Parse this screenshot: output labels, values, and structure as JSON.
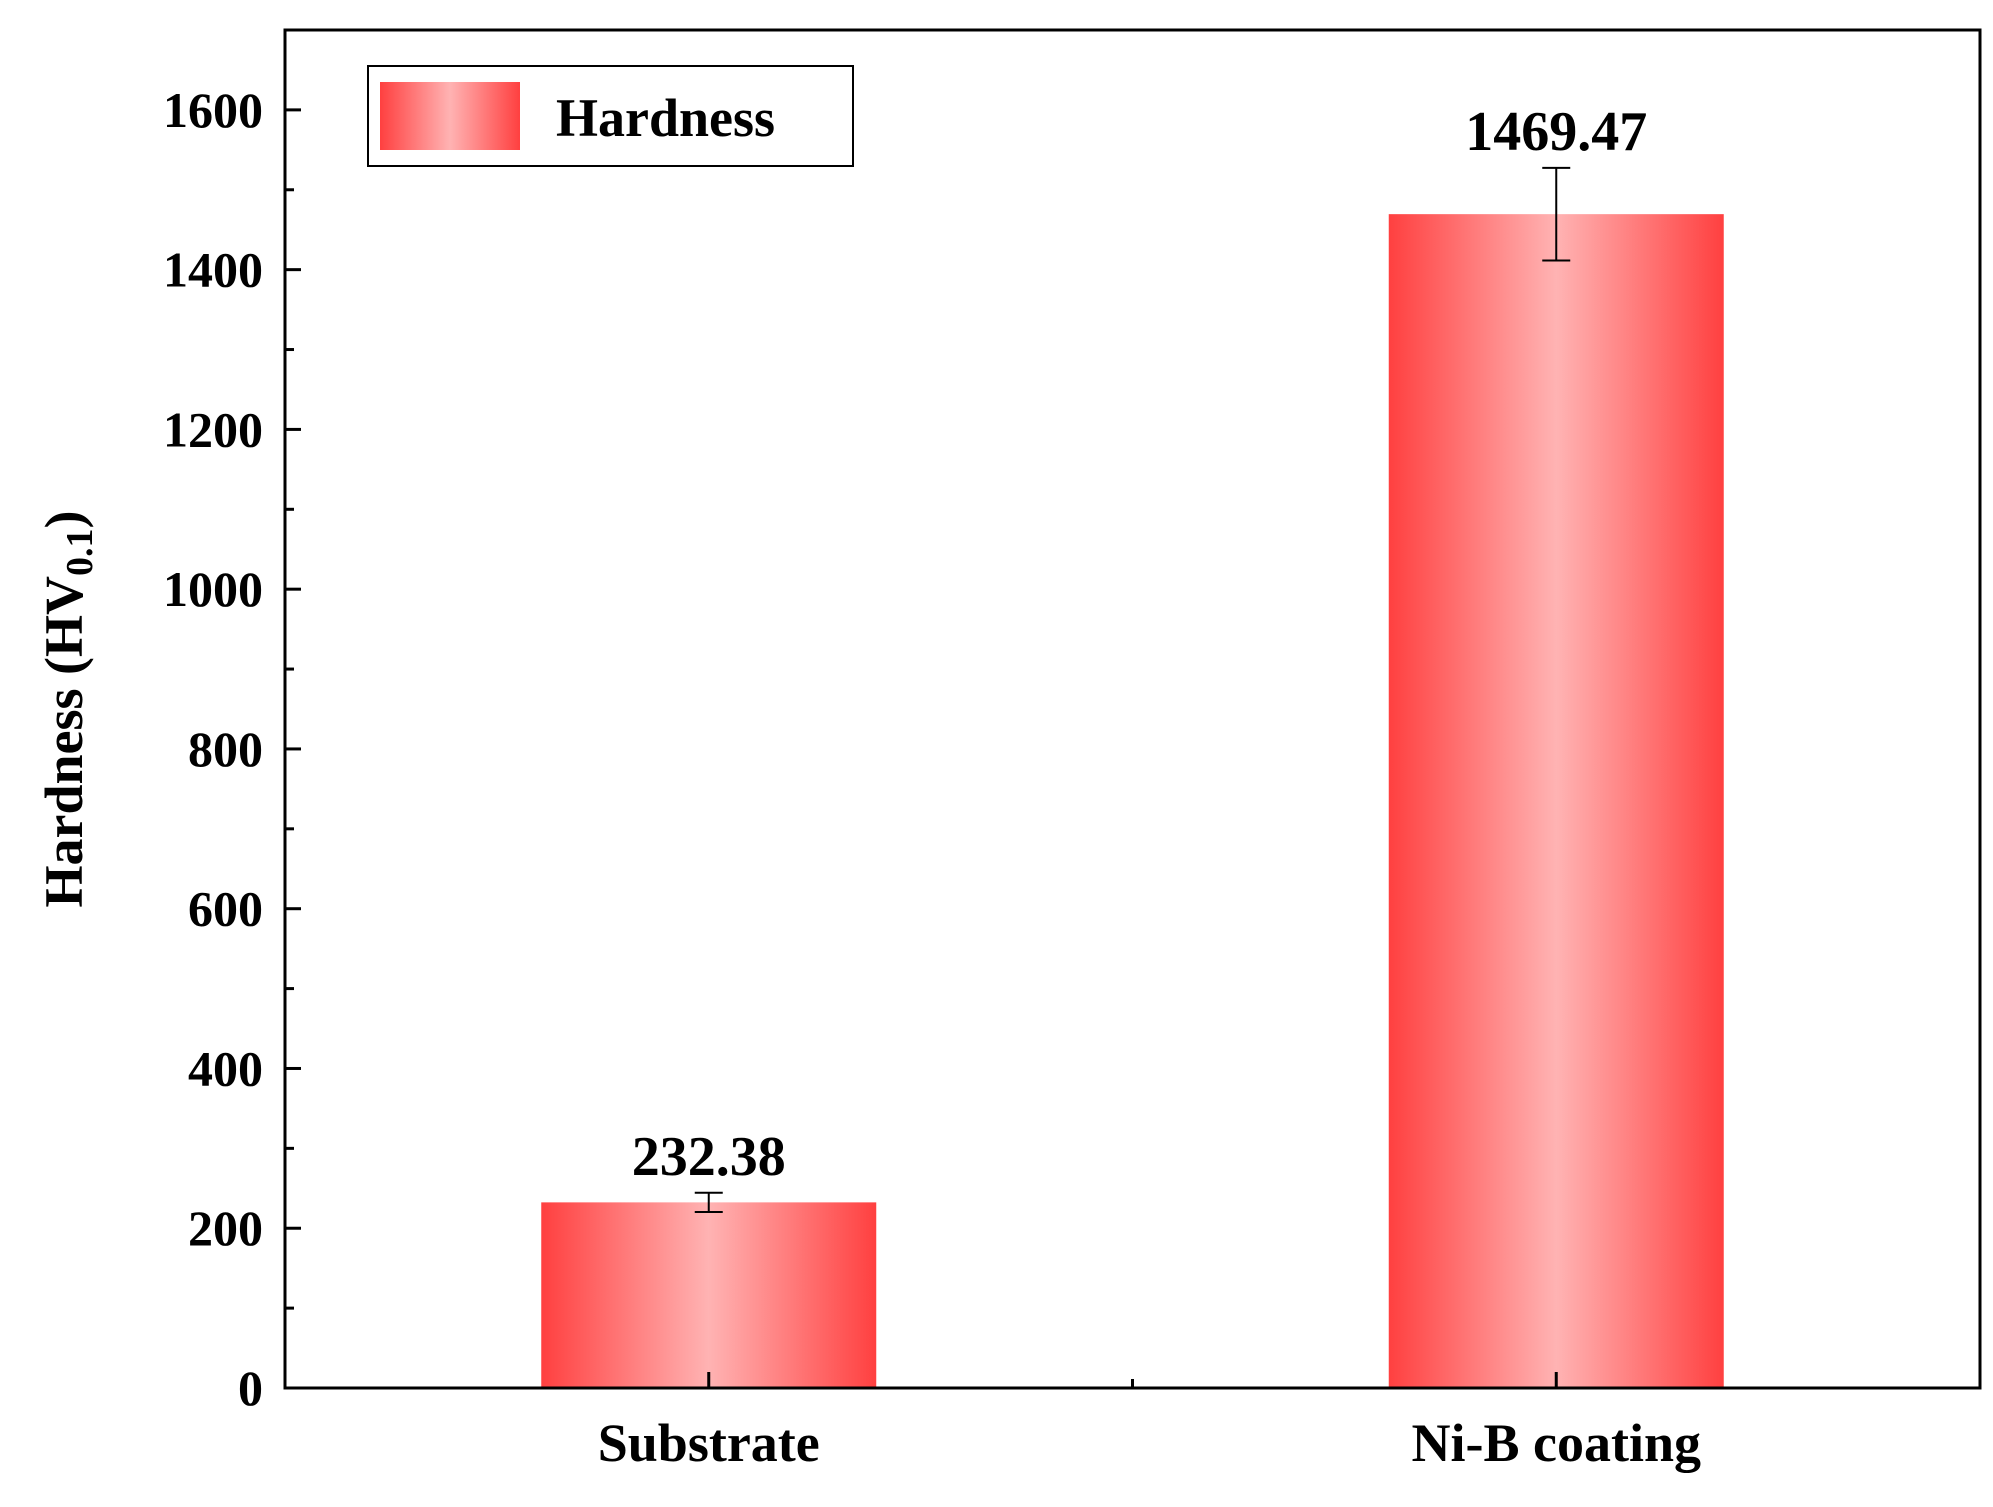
{
  "chart_data": {
    "type": "bar",
    "categories": [
      "Substrate",
      "Ni-B coating"
    ],
    "series": [
      {
        "name": "Hardness",
        "values": [
          232.38,
          1469.47
        ],
        "error": [
          12,
          58
        ],
        "data_labels": [
          "232.38",
          "1469.47"
        ]
      }
    ],
    "ylabel": {
      "main": "Hardness (HV",
      "subscript": "0.1",
      "close": ")"
    },
    "ylim": [
      0,
      1700
    ],
    "yticks": [
      0,
      200,
      400,
      600,
      800,
      1000,
      1200,
      1400,
      1600
    ],
    "ytick_labels": [
      "0",
      "200",
      "400",
      "600",
      "800",
      "1000",
      "1200",
      "1400",
      "1600"
    ],
    "legend_position": "top-left",
    "grid": false,
    "colors": {
      "bar_edge": "#ff4040",
      "bar_center": "#ffb3b3"
    }
  }
}
